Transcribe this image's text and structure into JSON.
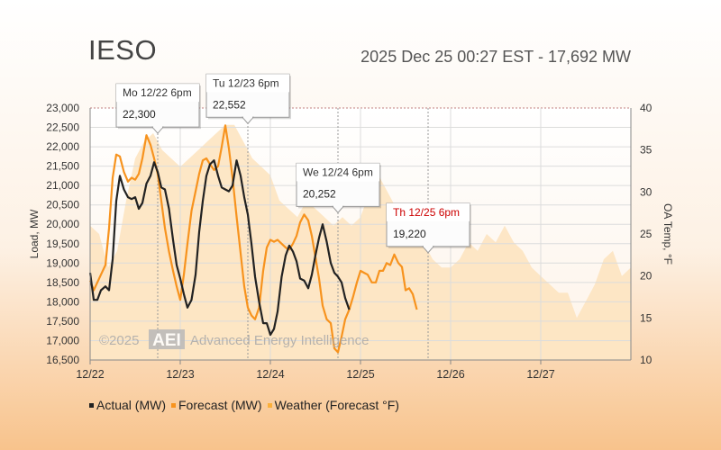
{
  "header": {
    "title": "IESO",
    "subtitle": "2025 Dec 25 00:27 EST - 17,692 MW"
  },
  "watermark": {
    "copyright": "©2025",
    "logo": "AEI",
    "company": "Advanced Energy Intelligence"
  },
  "legend": [
    {
      "label": "Actual (MW)",
      "color": "#222222"
    },
    {
      "label": "Forecast (MW)",
      "color": "#f7931e"
    },
    {
      "label": "Weather (Forecast °F)",
      "color": "#fbb03b"
    }
  ],
  "chart_data": {
    "type": "line",
    "ylabel": "Load, MW",
    "y2label": "OA Temp, °F",
    "ylim": [
      16500,
      23000
    ],
    "y2lim": [
      10,
      40
    ],
    "xlim": [
      0,
      6
    ],
    "yticks": [
      "23,000",
      "22,500",
      "22,000",
      "21,500",
      "21,000",
      "20,500",
      "20,000",
      "19,500",
      "19,000",
      "18,500",
      "18,000",
      "17,500",
      "17,000",
      "16,500"
    ],
    "y2ticks": [
      "40",
      "35",
      "30",
      "25",
      "20",
      "15",
      "10"
    ],
    "xticks": [
      "12/22",
      "12/23",
      "12/24",
      "12/25",
      "12/26",
      "12/27"
    ],
    "series": [
      {
        "name": "Actual (MW)",
        "axis": "left",
        "x": [
          0,
          0.04,
          0.08,
          0.12,
          0.17,
          0.21,
          0.25,
          0.29,
          0.33,
          0.375,
          0.42,
          0.46,
          0.5,
          0.54,
          0.58,
          0.625,
          0.67,
          0.71,
          0.75,
          0.79,
          0.83,
          0.875,
          0.92,
          0.96,
          1.0,
          1.04,
          1.08,
          1.125,
          1.17,
          1.21,
          1.25,
          1.29,
          1.33,
          1.375,
          1.42,
          1.46,
          1.5,
          1.54,
          1.58,
          1.625,
          1.67,
          1.71,
          1.75,
          1.79,
          1.83,
          1.875,
          1.92,
          1.96,
          2.0,
          2.04,
          2.08,
          2.125,
          2.17,
          2.21,
          2.25,
          2.29,
          2.33,
          2.375,
          2.42,
          2.46,
          2.5,
          2.54,
          2.58,
          2.625,
          2.67,
          2.71,
          2.75,
          2.79,
          2.83,
          2.875,
          2.92,
          2.96,
          3.0,
          3.04
        ],
        "values": [
          18750,
          18050,
          18050,
          18300,
          18400,
          18300,
          19100,
          20600,
          21250,
          20900,
          20700,
          20650,
          20700,
          20400,
          20550,
          21050,
          21250,
          21600,
          21350,
          20950,
          20900,
          20400,
          19600,
          18950,
          18600,
          18200,
          17850,
          18050,
          18700,
          19800,
          20600,
          21250,
          21550,
          21650,
          21250,
          20950,
          20900,
          20850,
          21000,
          21650,
          21250,
          20700,
          20250,
          19500,
          18650,
          18000,
          17450,
          17450,
          17150,
          17300,
          17750,
          18650,
          19200,
          19450,
          19300,
          19050,
          18600,
          18550,
          18350,
          18700,
          19200,
          19650,
          20000,
          19550,
          19000,
          18750,
          18650,
          18500,
          18100,
          17800,
          null,
          null,
          null,
          null
        ]
      },
      {
        "name": "Forecast (MW)",
        "axis": "left",
        "x": [
          0,
          0.04,
          0.08,
          0.12,
          0.17,
          0.21,
          0.25,
          0.29,
          0.33,
          0.375,
          0.42,
          0.46,
          0.5,
          0.54,
          0.58,
          0.625,
          0.67,
          0.71,
          0.75,
          0.79,
          0.83,
          0.875,
          0.92,
          0.96,
          1.0,
          1.04,
          1.08,
          1.125,
          1.17,
          1.21,
          1.25,
          1.29,
          1.33,
          1.375,
          1.42,
          1.46,
          1.5,
          1.54,
          1.58,
          1.625,
          1.67,
          1.71,
          1.75,
          1.79,
          1.83,
          1.875,
          1.92,
          1.96,
          2.0,
          2.04,
          2.08,
          2.125,
          2.17,
          2.21,
          2.25,
          2.29,
          2.33,
          2.375,
          2.42,
          2.46,
          2.5,
          2.54,
          2.58,
          2.625,
          2.67,
          2.71,
          2.75,
          2.79,
          2.83,
          2.875,
          2.92,
          2.96,
          3.0,
          3.04,
          3.08,
          3.125,
          3.17,
          3.21,
          3.25,
          3.29,
          3.33,
          3.375,
          3.42,
          3.46,
          3.5,
          3.54,
          3.58,
          3.625,
          3.67,
          3.71,
          3.75,
          3.79,
          3.83,
          3.875,
          3.92,
          3.96,
          4.0
        ],
        "values": [
          18550,
          18300,
          18500,
          18700,
          18950,
          19900,
          21200,
          21800,
          21750,
          21350,
          21100,
          21200,
          21150,
          21300,
          21700,
          22300,
          22050,
          21700,
          21300,
          20600,
          19900,
          19300,
          18800,
          18400,
          18050,
          18700,
          19500,
          20350,
          20850,
          21300,
          21650,
          21700,
          21550,
          21400,
          21500,
          22000,
          22552,
          21950,
          21200,
          20200,
          19250,
          18400,
          17850,
          17650,
          17550,
          17850,
          18800,
          19400,
          19600,
          19550,
          19600,
          19500,
          19400,
          19350,
          19500,
          19700,
          20050,
          20252,
          20100,
          19700,
          19150,
          18600,
          17900,
          17550,
          17450,
          16800,
          16700,
          17100,
          17550,
          17800,
          18150,
          18500,
          18800,
          18750,
          18700,
          18500,
          18500,
          18800,
          18800,
          19000,
          18950,
          19220,
          19000,
          18900,
          18300,
          18350,
          18200,
          17800,
          null,
          null,
          null,
          null,
          null,
          null,
          null,
          null,
          null
        ],
        "forecast_start_index": 0
      },
      {
        "name": "Weather (Forecast °F)",
        "axis": "right",
        "x": [
          0,
          0.1,
          0.2,
          0.3,
          0.4,
          0.5,
          0.6,
          0.7,
          0.8,
          0.9,
          1.0,
          1.1,
          1.2,
          1.3,
          1.4,
          1.5,
          1.6,
          1.7,
          1.8,
          1.9,
          2.0,
          2.1,
          2.2,
          2.3,
          2.4,
          2.5,
          2.6,
          2.7,
          2.8,
          2.9,
          3.0,
          3.1,
          3.2,
          3.3,
          3.4,
          3.5,
          3.6,
          3.7,
          3.8,
          3.9,
          4.0,
          4.1,
          4.2,
          4.3,
          4.4,
          4.5,
          4.6,
          4.7,
          4.8,
          4.9,
          5.0,
          5.1,
          5.2,
          5.3,
          5.4,
          5.5,
          5.6,
          5.7,
          5.8,
          5.9,
          6.0
        ],
        "values": [
          26,
          25,
          21,
          23,
          29,
          34,
          36,
          37,
          35,
          34,
          33,
          34,
          35,
          36,
          37,
          38,
          38,
          36,
          34,
          33,
          32,
          29,
          28,
          27,
          29,
          28,
          27,
          26,
          27,
          26,
          27,
          30,
          32,
          30,
          28,
          27,
          26,
          24,
          22,
          21,
          21,
          22,
          24,
          23,
          25,
          24,
          26,
          24,
          23,
          21,
          20,
          19,
          18,
          18,
          15,
          17,
          19,
          22,
          23,
          20,
          21
        ]
      }
    ],
    "tooltips": [
      {
        "label": "Mo 12/22 6pm",
        "value": "22,300",
        "x": 0.75,
        "y": 22300,
        "highlight": false
      },
      {
        "label": "Tu 12/23 6pm",
        "value": "22,552",
        "x": 1.75,
        "y": 22552,
        "highlight": false
      },
      {
        "label": "We 12/24 6pm",
        "value": "20,252",
        "x": 2.75,
        "y": 20252,
        "highlight": false
      },
      {
        "label": "Th 12/25 6pm",
        "value": "19,220",
        "x": 3.75,
        "y": 19220,
        "highlight": true
      }
    ],
    "tooltip_anchor_dash_color": "#c07070",
    "grid": true
  }
}
